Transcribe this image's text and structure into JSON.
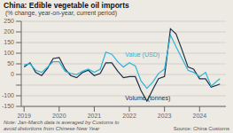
{
  "chart_data": {
    "type": "line",
    "title": "China: Edible vegetable oil imports",
    "subtitle": " (% change, year-on-year, current period)",
    "note": "Note: Jan-March data is averaged by Customs to\navoid distortions from Chinese New Year",
    "source": "Source: China Customs",
    "x": [
      2019.0,
      2019.17,
      2019.33,
      2019.5,
      2019.67,
      2019.83,
      2020.0,
      2020.17,
      2020.33,
      2020.5,
      2020.67,
      2020.83,
      2021.0,
      2021.17,
      2021.33,
      2021.5,
      2021.67,
      2021.83,
      2022.0,
      2022.17,
      2022.33,
      2022.5,
      2022.67,
      2022.83,
      2023.0,
      2023.17,
      2023.33,
      2023.5,
      2023.67,
      2023.83,
      2024.0,
      2024.17,
      2024.33,
      2024.5,
      2024.58
    ],
    "series": [
      {
        "name": "Volume (tonnes)",
        "color": "#1c2f45",
        "values": [
          35,
          55,
          10,
          -5,
          30,
          75,
          80,
          25,
          -5,
          -15,
          10,
          20,
          -5,
          5,
          55,
          55,
          15,
          -15,
          -10,
          -10,
          -75,
          -125,
          -70,
          -20,
          -10,
          215,
          190,
          115,
          35,
          25,
          -20,
          -20,
          -60,
          -50,
          -45
        ]
      },
      {
        "name": "Value (USD)",
        "color": "#2cb5d8",
        "values": [
          45,
          50,
          20,
          10,
          35,
          60,
          60,
          15,
          5,
          0,
          15,
          25,
          10,
          25,
          105,
          95,
          60,
          35,
          55,
          40,
          -30,
          -65,
          -35,
          5,
          25,
          185,
          130,
          75,
          20,
          10,
          -10,
          10,
          -55,
          -30,
          -20
        ]
      }
    ],
    "annotations": [
      {
        "text": "Value (USD)",
        "x": 2021.88,
        "y": 77
      },
      {
        "text": "Volume (tonnes)",
        "x": 2021.88,
        "y": -90
      }
    ],
    "xlim": [
      2018.92,
      2024.75
    ],
    "xticks": [
      2019,
      2020,
      2021,
      2022,
      2023,
      2024
    ],
    "ylim": [
      -150,
      250
    ],
    "yticks": [
      -150,
      -100,
      {
        "value": -50,
        "label": ""
      },
      0,
      50,
      100,
      150,
      200,
      250
    ],
    "grid": true
  }
}
